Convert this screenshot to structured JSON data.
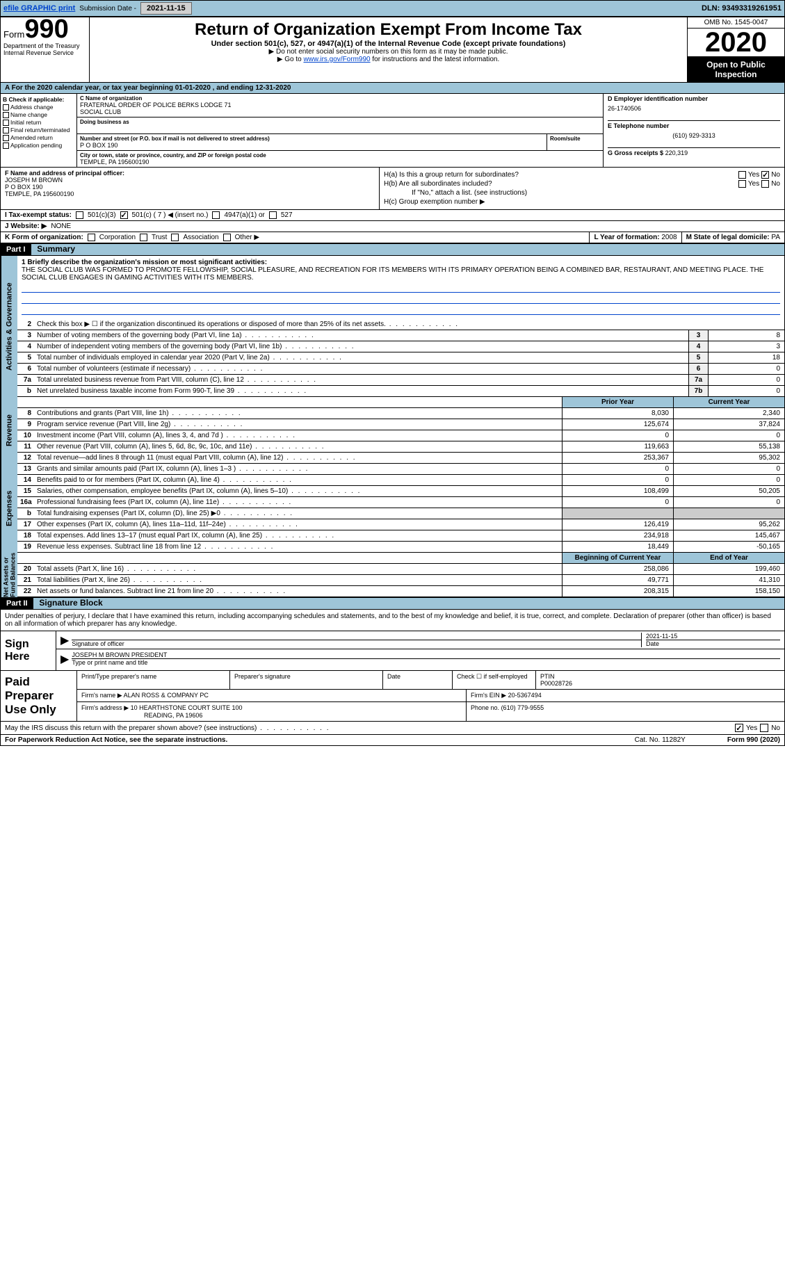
{
  "topbar": {
    "efile": "efile GRAPHIC print",
    "sub_label": "Submission Date -",
    "sub_date": "2021-11-15",
    "dln": "DLN: 93493319261951"
  },
  "header": {
    "form_word": "Form",
    "form_num": "990",
    "title": "Return of Organization Exempt From Income Tax",
    "subtitle": "Under section 501(c), 527, or 4947(a)(1) of the Internal Revenue Code (except private foundations)",
    "notice1": "▶ Do not enter social security numbers on this form as it may be made public.",
    "notice2_pre": "▶ Go to ",
    "notice2_link": "www.irs.gov/Form990",
    "notice2_post": " for instructions and the latest information.",
    "dept": "Department of the Treasury\nInternal Revenue Service",
    "omb": "OMB No. 1545-0047",
    "year": "2020",
    "open": "Open to Public Inspection"
  },
  "period": "A For the 2020 calendar year, or tax year beginning 01-01-2020    , and ending 12-31-2020",
  "sectionB": {
    "label": "B Check if applicable:",
    "items": [
      "Address change",
      "Name change",
      "Initial return",
      "Final return/terminated",
      "Amended return",
      "Application pending"
    ]
  },
  "sectionC": {
    "name_lbl": "C Name of organization",
    "name": "FRATERNAL ORDER OF POLICE BERKS LODGE 71\nSOCIAL CLUB",
    "dba_lbl": "Doing business as",
    "addr_lbl": "Number and street (or P.O. box if mail is not delivered to street address)",
    "room_lbl": "Room/suite",
    "addr": "P O BOX 190",
    "city_lbl": "City or town, state or province, country, and ZIP or foreign postal code",
    "city": "TEMPLE, PA  195600190"
  },
  "sectionD": {
    "ein_lbl": "D Employer identification number",
    "ein": "26-1740506",
    "tel_lbl": "E Telephone number",
    "tel": "(610) 929-3313",
    "gross_lbl": "G Gross receipts $",
    "gross": "220,319"
  },
  "sectionF": {
    "lbl": "F Name and address of principal officer:",
    "name": "JOSEPH M BROWN",
    "addr1": "P O BOX 190",
    "addr2": "TEMPLE, PA  195600190"
  },
  "sectionH": {
    "a": "H(a)  Is this a group return for subordinates?",
    "b": "H(b)  Are all subordinates included?",
    "b_note": "If \"No,\" attach a list. (see instructions)",
    "c": "H(c)  Group exemption number ▶"
  },
  "sectionI": {
    "lbl": "I   Tax-exempt status:",
    "opts": [
      "501(c)(3)",
      "501(c) ( 7 ) ◀ (insert no.)",
      "4947(a)(1) or",
      "527"
    ]
  },
  "sectionJ": {
    "lbl": "J  Website: ▶",
    "val": "NONE"
  },
  "sectionK": {
    "lbl": "K Form of organization:",
    "opts": [
      "Corporation",
      "Trust",
      "Association",
      "Other ▶"
    ]
  },
  "sectionL": {
    "lbl": "L Year of formation:",
    "val": "2008"
  },
  "sectionM": {
    "lbl": "M State of legal domicile:",
    "val": "PA"
  },
  "parts": {
    "p1": "Part I",
    "p1_title": "Summary",
    "p2": "Part II",
    "p2_title": "Signature Block"
  },
  "mission": {
    "lbl": "1  Briefly describe the organization's mission or most significant activities:",
    "text": "THE SOCIAL CLUB WAS FORMED TO PROMOTE FELLOWSHIP, SOCIAL PLEASURE, AND RECREATION FOR ITS MEMBERS WITH ITS PRIMARY OPERATION BEING A COMBINED BAR, RESTAURANT, AND MEETING PLACE. THE SOCIAL CLUB ENGAGES IN GAMING ACTIVITIES WITH ITS MEMBERS."
  },
  "gov_lines": [
    {
      "n": "2",
      "d": "Check this box ▶ ☐ if the organization discontinued its operations or disposed of more than 25% of its net assets.",
      "box": "",
      "v": ""
    },
    {
      "n": "3",
      "d": "Number of voting members of the governing body (Part VI, line 1a)",
      "box": "3",
      "v": "8"
    },
    {
      "n": "4",
      "d": "Number of independent voting members of the governing body (Part VI, line 1b)",
      "box": "4",
      "v": "3"
    },
    {
      "n": "5",
      "d": "Total number of individuals employed in calendar year 2020 (Part V, line 2a)",
      "box": "5",
      "v": "18"
    },
    {
      "n": "6",
      "d": "Total number of volunteers (estimate if necessary)",
      "box": "6",
      "v": "0"
    },
    {
      "n": "7a",
      "d": "Total unrelated business revenue from Part VIII, column (C), line 12",
      "box": "7a",
      "v": "0"
    },
    {
      "n": "b",
      "d": "Net unrelated business taxable income from Form 990-T, line 39",
      "box": "7b",
      "v": "0"
    }
  ],
  "rev_hdr": {
    "prior": "Prior Year",
    "curr": "Current Year"
  },
  "rev_lines": [
    {
      "n": "8",
      "d": "Contributions and grants (Part VIII, line 1h)",
      "p": "8,030",
      "c": "2,340"
    },
    {
      "n": "9",
      "d": "Program service revenue (Part VIII, line 2g)",
      "p": "125,674",
      "c": "37,824"
    },
    {
      "n": "10",
      "d": "Investment income (Part VIII, column (A), lines 3, 4, and 7d )",
      "p": "0",
      "c": "0"
    },
    {
      "n": "11",
      "d": "Other revenue (Part VIII, column (A), lines 5, 6d, 8c, 9c, 10c, and 11e)",
      "p": "119,663",
      "c": "55,138"
    },
    {
      "n": "12",
      "d": "Total revenue—add lines 8 through 11 (must equal Part VIII, column (A), line 12)",
      "p": "253,367",
      "c": "95,302"
    }
  ],
  "exp_lines": [
    {
      "n": "13",
      "d": "Grants and similar amounts paid (Part IX, column (A), lines 1–3 )",
      "p": "0",
      "c": "0"
    },
    {
      "n": "14",
      "d": "Benefits paid to or for members (Part IX, column (A), line 4)",
      "p": "0",
      "c": "0"
    },
    {
      "n": "15",
      "d": "Salaries, other compensation, employee benefits (Part IX, column (A), lines 5–10)",
      "p": "108,499",
      "c": "50,205"
    },
    {
      "n": "16a",
      "d": "Professional fundraising fees (Part IX, column (A), line 11e)",
      "p": "0",
      "c": "0"
    },
    {
      "n": "b",
      "d": "Total fundraising expenses (Part IX, column (D), line 25) ▶0",
      "p": "",
      "c": ""
    },
    {
      "n": "17",
      "d": "Other expenses (Part IX, column (A), lines 11a–11d, 11f–24e)",
      "p": "126,419",
      "c": "95,262"
    },
    {
      "n": "18",
      "d": "Total expenses. Add lines 13–17 (must equal Part IX, column (A), line 25)",
      "p": "234,918",
      "c": "145,467"
    },
    {
      "n": "19",
      "d": "Revenue less expenses. Subtract line 18 from line 12",
      "p": "18,449",
      "c": "-50,165"
    }
  ],
  "na_hdr": {
    "prior": "Beginning of Current Year",
    "curr": "End of Year"
  },
  "na_lines": [
    {
      "n": "20",
      "d": "Total assets (Part X, line 16)",
      "p": "258,086",
      "c": "199,460"
    },
    {
      "n": "21",
      "d": "Total liabilities (Part X, line 26)",
      "p": "49,771",
      "c": "41,310"
    },
    {
      "n": "22",
      "d": "Net assets or fund balances. Subtract line 21 from line 20",
      "p": "208,315",
      "c": "158,150"
    }
  ],
  "vtabs": {
    "gov": "Activities & Governance",
    "rev": "Revenue",
    "exp": "Expenses",
    "na": "Net Assets or\nFund Balances"
  },
  "sig": {
    "penalties": "Under penalties of perjury, I declare that I have examined this return, including accompanying schedules and statements, and to the best of my knowledge and belief, it is true, correct, and complete. Declaration of preparer (other than officer) is based on all information of which preparer has any knowledge.",
    "sign_here": "Sign Here",
    "sig_of": "Signature of officer",
    "date": "2021-11-15",
    "date_lbl": "Date",
    "name": "JOSEPH M BROWN  PRESIDENT",
    "name_lbl": "Type or print name and title"
  },
  "prep": {
    "title": "Paid Preparer Use Only",
    "r1": {
      "a": "Print/Type preparer's name",
      "b": "Preparer's signature",
      "c": "Date",
      "d": "Check ☐ if self-employed",
      "e": "PTIN",
      "ev": "P00028726"
    },
    "r2": {
      "a": "Firm's name    ▶",
      "av": "ALAN ROSS & COMPANY PC",
      "b": "Firm's EIN ▶",
      "bv": "20-5367494"
    },
    "r3": {
      "a": "Firm's address ▶",
      "av": "10 HEARTHSTONE COURT SUITE 100",
      "av2": "READING, PA  19606",
      "b": "Phone no.",
      "bv": "(610) 779-9555"
    }
  },
  "discuss": "May the IRS discuss this return with the preparer shown above? (see instructions)",
  "footer": {
    "left": "For Paperwork Reduction Act Notice, see the separate instructions.",
    "mid": "Cat. No. 11282Y",
    "right": "Form 990 (2020)"
  }
}
